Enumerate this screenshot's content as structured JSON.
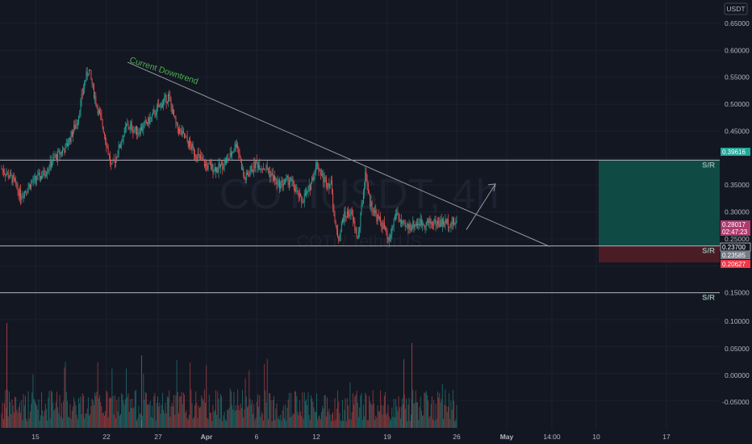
{
  "chart_data": {
    "type": "candlestick",
    "symbol_watermark": "COTIUSDT, 4h",
    "pair_watermark": "COTI / TetherUS",
    "currency_label": "USDT",
    "price_axis": {
      "ticks": [
        "0.65000",
        "0.60000",
        "0.55000",
        "0.50000",
        "0.45000",
        "0.35000",
        "0.30000",
        "0.25000",
        "0.15000"
      ],
      "tick_values": [
        0.65,
        0.6,
        0.55,
        0.5,
        0.45,
        0.35,
        0.3,
        0.25,
        0.15
      ],
      "range": [
        0.09,
        0.674
      ]
    },
    "volume_axis": {
      "ticks": [
        "0.10000",
        "0.05000",
        "0.00000",
        "-0.05000"
      ],
      "tick_values": [
        0.1,
        0.05,
        0.0,
        -0.05
      ]
    },
    "time_axis": {
      "labels": [
        "15",
        "22",
        "27",
        "Apr",
        "6",
        "12",
        "19",
        "26",
        "May",
        "14:00",
        "10",
        "17"
      ]
    },
    "annotation": "Current Downtrend",
    "sr_label": "S/R",
    "levels": [
      {
        "value": 0.39616,
        "label": "0.39616"
      },
      {
        "value": 0.237,
        "label": "0.23700"
      },
      {
        "value": 0.15,
        "label": "0.15000"
      }
    ],
    "price_tags": [
      {
        "label": "0.39616",
        "color": "#26a69a"
      },
      {
        "label": "0.28017",
        "color": "#b03a6e"
      },
      {
        "label": "02:47:23",
        "color": "#b03a6e"
      },
      {
        "label": "0.23700",
        "color": "#131722"
      },
      {
        "label": "0.23585",
        "color": "#787b86"
      },
      {
        "label": "0.20627",
        "color": "#f23645"
      }
    ],
    "position_box": {
      "entry": 0.237,
      "target": 0.39616,
      "stop": 0.20627
    },
    "trendline": {
      "from": [
        23,
        0.578
      ],
      "to": [
        128,
        0.236
      ]
    },
    "arrow": {
      "from": [
        108,
        0.267
      ],
      "to": [
        115,
        0.352
      ]
    },
    "anchors": [
      [
        0,
        0.38
      ],
      [
        3,
        0.36
      ],
      [
        5,
        0.33
      ],
      [
        8,
        0.355
      ],
      [
        11,
        0.37
      ],
      [
        14,
        0.4
      ],
      [
        17,
        0.42
      ],
      [
        20,
        0.47
      ],
      [
        22,
        0.545
      ],
      [
        23,
        0.565
      ],
      [
        25,
        0.5
      ],
      [
        27,
        0.45
      ],
      [
        29,
        0.38
      ],
      [
        31,
        0.42
      ],
      [
        33,
        0.46
      ],
      [
        36,
        0.45
      ],
      [
        39,
        0.47
      ],
      [
        42,
        0.5
      ],
      [
        44,
        0.515
      ],
      [
        46,
        0.46
      ],
      [
        48,
        0.44
      ],
      [
        51,
        0.41
      ],
      [
        54,
        0.385
      ],
      [
        57,
        0.38
      ],
      [
        60,
        0.4
      ],
      [
        62,
        0.43
      ],
      [
        64,
        0.36
      ],
      [
        67,
        0.39
      ],
      [
        70,
        0.38
      ],
      [
        73,
        0.35
      ],
      [
        76,
        0.36
      ],
      [
        79,
        0.32
      ],
      [
        81,
        0.34
      ],
      [
        83,
        0.39
      ],
      [
        85,
        0.36
      ],
      [
        87,
        0.35
      ],
      [
        88,
        0.27
      ],
      [
        89,
        0.25
      ],
      [
        90,
        0.29
      ],
      [
        92,
        0.3
      ],
      [
        94,
        0.25
      ],
      [
        96,
        0.375
      ],
      [
        97,
        0.32
      ],
      [
        99,
        0.29
      ],
      [
        101,
        0.27
      ],
      [
        102,
        0.24
      ],
      [
        104,
        0.3
      ],
      [
        106,
        0.27
      ],
      [
        108,
        0.275
      ],
      [
        110,
        0.28
      ]
    ],
    "colors": {
      "up": "#26a69a",
      "down": "#ef5350",
      "grid": "#1c2030",
      "level": "#b2b5be",
      "trend": "#9598a1",
      "profit": "#0f4a45",
      "loss": "#4a1d25"
    }
  }
}
